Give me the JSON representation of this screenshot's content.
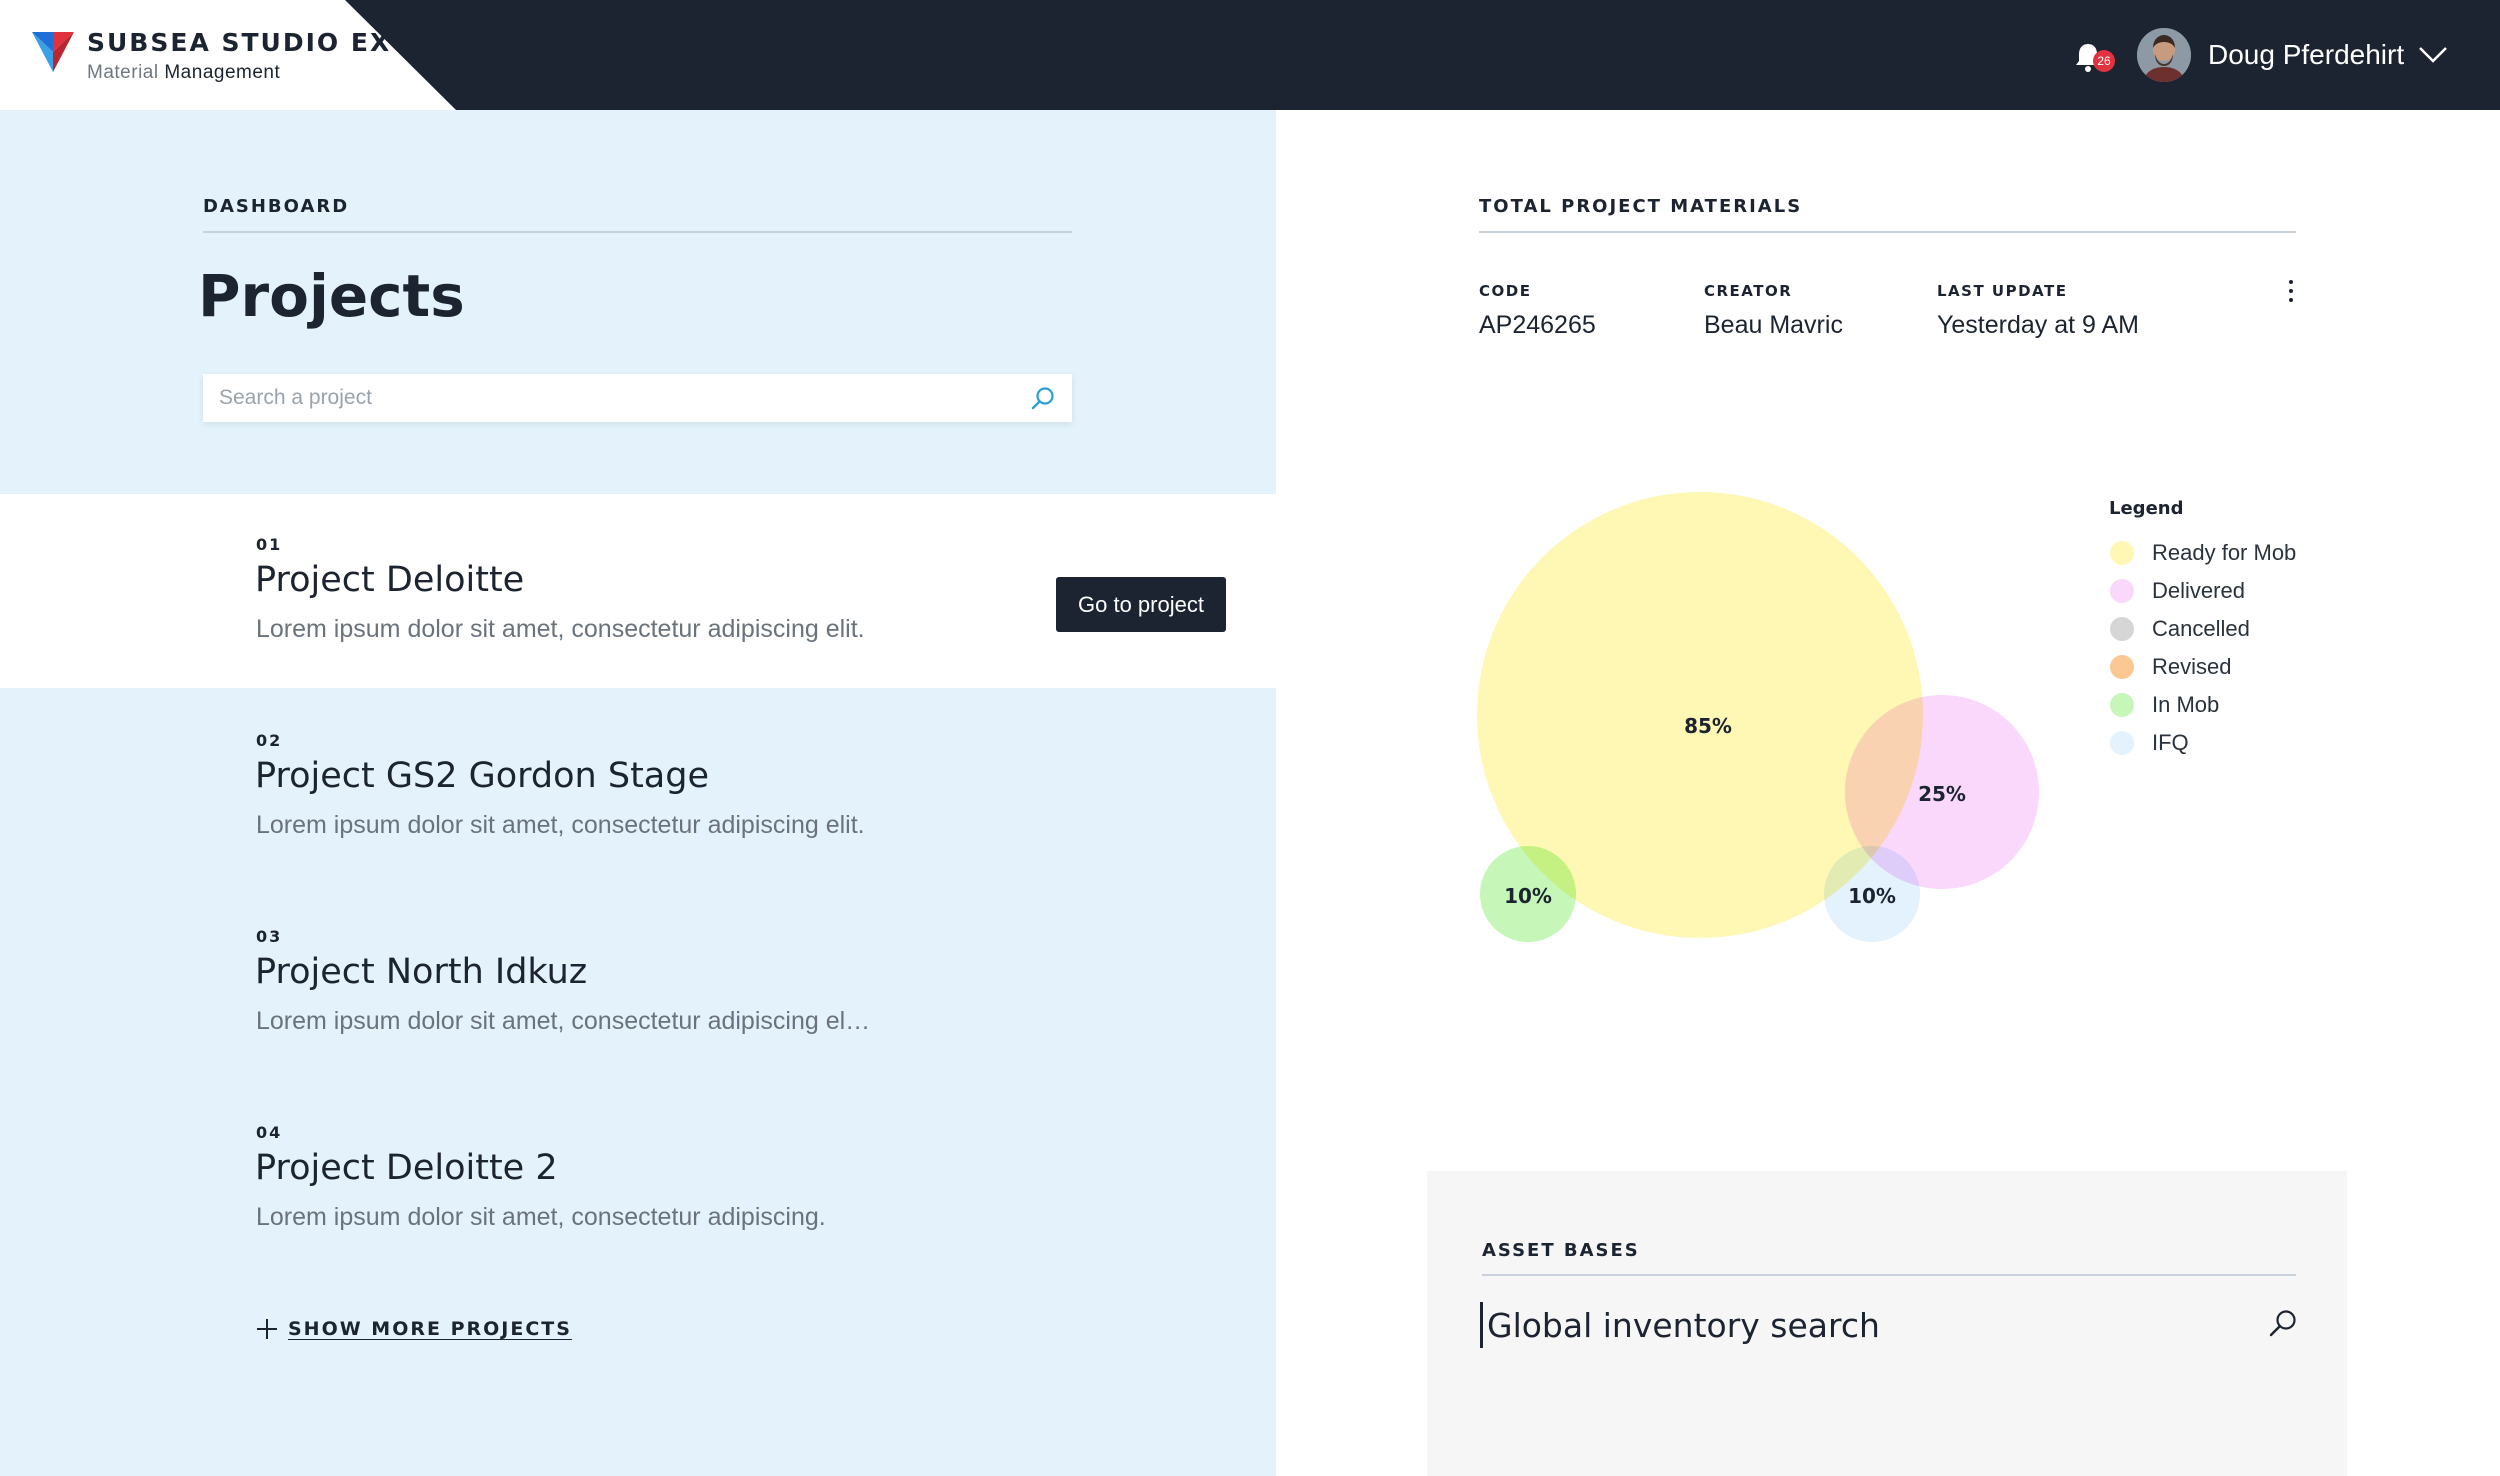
{
  "header": {
    "brand_title": "SUBSEA STUDIO EX",
    "brand_sub_light": "Material",
    "brand_sub_dark": "Management",
    "notification_count": "26",
    "user_name": "Doug Pferdehirt"
  },
  "dashboard": {
    "section_label": "DASHBOARD",
    "title": "Projects",
    "search_placeholder": "Search a project",
    "go_button_label": "Go to project",
    "show_more_label": "SHOW MORE PROJECTS",
    "projects": [
      {
        "num": "01",
        "name": "Project Deloitte",
        "desc": "Lorem ipsum dolor sit amet, consectetur adipiscing elit."
      },
      {
        "num": "02",
        "name": "Project GS2 Gordon Stage",
        "desc": "Lorem ipsum dolor sit amet, consectetur adipiscing elit."
      },
      {
        "num": "03",
        "name": "Project North Idkuz",
        "desc": "Lorem ipsum dolor sit amet, consectetur adipiscing el…"
      },
      {
        "num": "04",
        "name": "Project Deloitte 2",
        "desc": "Lorem ipsum dolor sit amet, consectetur adipiscing."
      }
    ]
  },
  "materials": {
    "section_label": "TOTAL PROJECT MATERIALS",
    "code_label": "CODE",
    "code_value": "AP246265",
    "creator_label": "CREATOR",
    "creator_value": "Beau Mavric",
    "update_label": "LAST UPDATE",
    "update_value": "Yesterday at 9 AM",
    "legend_title": "Legend",
    "legend": [
      {
        "label": "Ready for Mob",
        "color": "#fef8b4"
      },
      {
        "label": "Delivered",
        "color": "#f9d8fb"
      },
      {
        "label": "Cancelled",
        "color": "#d6d6d6"
      },
      {
        "label": "Revised",
        "color": "#fbc792"
      },
      {
        "label": "In Mob",
        "color": "#c6f7b8"
      },
      {
        "label": "IFQ",
        "color": "#e3f2fc"
      }
    ]
  },
  "chart_data": {
    "type": "bubble",
    "series": [
      {
        "name": "Ready for Mob",
        "label": "85%",
        "value": 85,
        "color": "#fef8b4"
      },
      {
        "name": "Delivered",
        "label": "25%",
        "value": 25,
        "color": "#f9d8fb"
      },
      {
        "name": "In Mob",
        "label": "10%",
        "value": 10,
        "color": "#c6f7b8"
      },
      {
        "name": "IFQ",
        "label": "10%",
        "value": 10,
        "color": "#e3f2fc"
      }
    ]
  },
  "assets": {
    "section_label": "ASSET BASES",
    "search_value": "Global inventory search"
  }
}
